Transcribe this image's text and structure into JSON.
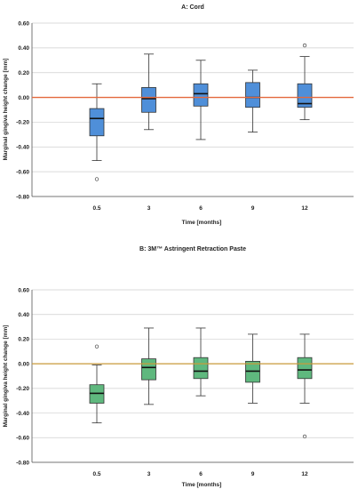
{
  "chart_data": [
    {
      "type": "box",
      "title": "A: Cord",
      "xlabel": "Time [months]",
      "ylabel": "Marginal gingiva height change [mm]",
      "ylim": [
        -0.8,
        0.6
      ],
      "yticks": [
        "0.60",
        "0.40",
        "0.20",
        "0.00",
        "-0.20",
        "-0.40",
        "-0.60",
        "-0.80"
      ],
      "ytick_values": [
        0.6,
        0.4,
        0.2,
        0.0,
        -0.2,
        -0.4,
        -0.6,
        -0.8
      ],
      "categories": [
        "0.5",
        "3",
        "6",
        "9",
        "12"
      ],
      "reference_line": 0.0,
      "grid": true,
      "box_color": "#4f8fd9",
      "line_color": "#e3683c",
      "boxes": [
        {
          "whisker_low": -0.51,
          "q1": -0.31,
          "median": -0.17,
          "q3": -0.09,
          "whisker_high": 0.11,
          "outliers": [
            -0.66
          ]
        },
        {
          "whisker_low": -0.26,
          "q1": -0.12,
          "median": -0.01,
          "q3": 0.08,
          "whisker_high": 0.35,
          "outliers": []
        },
        {
          "whisker_low": -0.34,
          "q1": -0.07,
          "median": 0.03,
          "q3": 0.11,
          "whisker_high": 0.3,
          "outliers": []
        },
        {
          "whisker_low": -0.28,
          "q1": -0.08,
          "median": 0.0,
          "q3": 0.12,
          "whisker_high": 0.22,
          "outliers": []
        },
        {
          "whisker_low": -0.18,
          "q1": -0.08,
          "median": -0.05,
          "q3": 0.11,
          "whisker_high": 0.33,
          "outliers": [
            0.42
          ]
        }
      ]
    },
    {
      "type": "box",
      "title": "B: 3M™ Astringent Retraction Paste",
      "xlabel": "Time [months]",
      "ylabel": "Marginal gingiva height change [mm]",
      "ylim": [
        -0.8,
        0.6
      ],
      "yticks": [
        "0.60",
        "0.40",
        "0.20",
        "0.00",
        "-0.20",
        "-0.40",
        "-0.60",
        "-0.80"
      ],
      "ytick_values": [
        0.6,
        0.4,
        0.2,
        0.0,
        -0.2,
        -0.4,
        -0.6,
        -0.8
      ],
      "categories": [
        "0.5",
        "3",
        "6",
        "9",
        "12"
      ],
      "reference_line": 0.0,
      "grid": true,
      "box_color": "#5fb87e",
      "line_color": "#c99a3a",
      "boxes": [
        {
          "whisker_low": -0.48,
          "q1": -0.32,
          "median": -0.24,
          "q3": -0.17,
          "whisker_high": -0.01,
          "outliers": [
            0.14
          ]
        },
        {
          "whisker_low": -0.33,
          "q1": -0.13,
          "median": -0.03,
          "q3": 0.04,
          "whisker_high": 0.29,
          "outliers": []
        },
        {
          "whisker_low": -0.26,
          "q1": -0.12,
          "median": -0.06,
          "q3": 0.05,
          "whisker_high": 0.29,
          "outliers": []
        },
        {
          "whisker_low": -0.32,
          "q1": -0.15,
          "median": -0.06,
          "q3": 0.02,
          "whisker_high": 0.24,
          "outliers": []
        },
        {
          "whisker_low": -0.32,
          "q1": -0.12,
          "median": -0.05,
          "q3": 0.05,
          "whisker_high": 0.24,
          "outliers": [
            -0.59
          ]
        }
      ]
    }
  ]
}
